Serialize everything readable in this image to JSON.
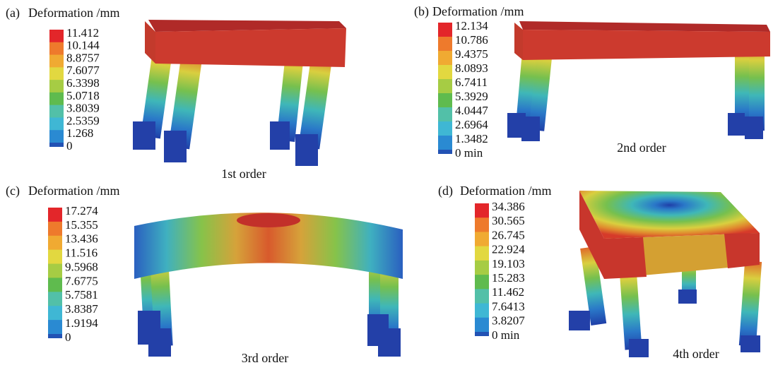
{
  "panels": [
    {
      "label": "(a)",
      "title": "Deformation /mm",
      "legend": [
        "11.412",
        "10.144",
        "8.8757",
        "7.6077",
        "6.3398",
        "5.0718",
        "3.8039",
        "2.5359",
        "1.268",
        "0"
      ],
      "caption": "1st order"
    },
    {
      "label": "(b)",
      "title": "Deformation /mm",
      "legend": [
        "12.134",
        "10.786",
        "9.4375",
        "8.0893",
        "6.7411",
        "5.3929",
        "4.0447",
        "2.6964",
        "1.3482",
        "0 min"
      ],
      "caption": "2nd order"
    },
    {
      "label": "(c)",
      "title": "Deformation /mm",
      "legend": [
        "17.274",
        "15.355",
        "13.436",
        "11.516",
        "9.5968",
        "7.6775",
        "5.7581",
        "3.8387",
        "1.9194",
        "0"
      ],
      "caption": "3rd order"
    },
    {
      "label": "(d)",
      "title": "Deformation /mm",
      "legend": [
        "34.386",
        "30.565",
        "26.745",
        "22.924",
        "19.103",
        "15.283",
        "11.462",
        "7.6413",
        "3.8207",
        "0 min"
      ],
      "caption": "4th order"
    }
  ]
}
